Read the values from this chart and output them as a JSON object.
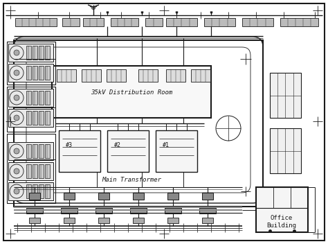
{
  "line_color": "#1a1a1a",
  "bg_color": "#ffffff",
  "text_35kv": "35kV Distribution Room",
  "text_transformer": "Main Transformer",
  "text_office": "Office\nBuilding",
  "text_nums": [
    "#3",
    "#2",
    "#1"
  ]
}
